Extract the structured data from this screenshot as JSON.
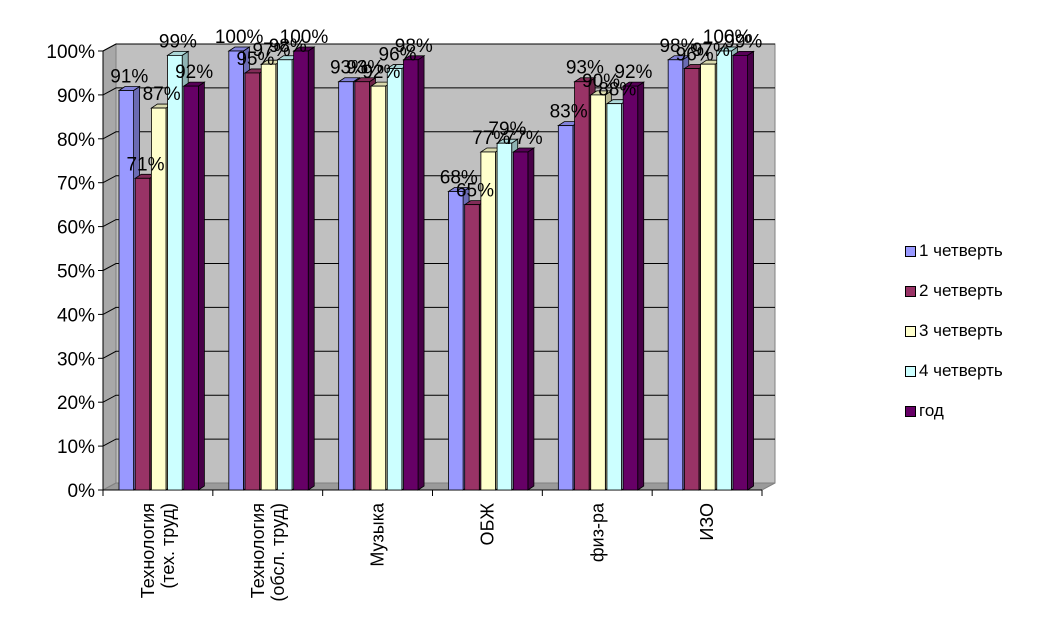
{
  "chart_data": {
    "type": "bar",
    "style": "3d-clustered-column",
    "categories": [
      "Технология (тех. труд)",
      "Технология (обсл. труд)",
      "Музыка",
      "ОБЖ",
      "физ-ра",
      "ИЗО"
    ],
    "category_lines": [
      [
        "Технология",
        "(тех. труд)"
      ],
      [
        "Технология",
        "(обсл. труд)"
      ],
      [
        "Музыка"
      ],
      [
        "ОБЖ"
      ],
      [
        "физ-ра"
      ],
      [
        "ИЗО"
      ]
    ],
    "series": [
      {
        "name": "1 четверть",
        "color": "#9999FF",
        "values": [
          91,
          100,
          93,
          68,
          83,
          98
        ]
      },
      {
        "name": "2 четверть",
        "color": "#993366",
        "values": [
          71,
          95,
          93,
          65,
          93,
          96
        ]
      },
      {
        "name": "3 четверть",
        "color": "#FFFFCC",
        "values": [
          87,
          97,
          92,
          77,
          90,
          97
        ]
      },
      {
        "name": "4 четверть",
        "color": "#CCFFFF",
        "values": [
          99,
          98,
          96,
          79,
          88,
          100
        ]
      },
      {
        "name": "год",
        "color": "#660066",
        "values": [
          92,
          100,
          98,
          77,
          92,
          99
        ]
      }
    ],
    "data_labels": [
      [
        "91%",
        "71%",
        "87%",
        "99%",
        "92%"
      ],
      [
        "100%",
        "95%",
        "97%",
        "98%",
        "100%"
      ],
      [
        "93%",
        "93%",
        "92%",
        "96%",
        "98%"
      ],
      [
        "68%",
        "65%",
        "77%",
        "79%",
        "77%"
      ],
      [
        "83%",
        "93%",
        "90%",
        "88%",
        "92%"
      ],
      [
        "98%",
        "96%",
        "97%",
        "100%",
        "99%"
      ]
    ],
    "y_ticks": [
      "0%",
      "10%",
      "20%",
      "30%",
      "40%",
      "50%",
      "60%",
      "70%",
      "80%",
      "90%",
      "100%"
    ],
    "ylim": [
      0,
      100
    ],
    "wall_color": "#C0C0C0",
    "grid": true,
    "legend_position": "right"
  }
}
